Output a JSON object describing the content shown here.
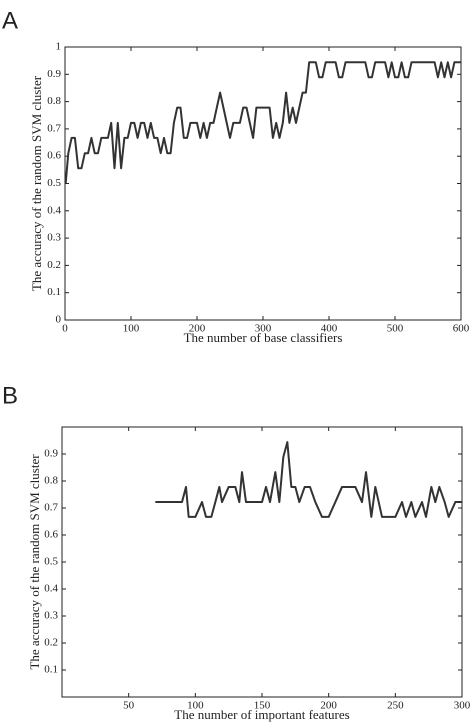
{
  "chart_data": [
    {
      "type": "line",
      "label": "A",
      "xlabel": "The number of base classifiers",
      "ylabel": "The accuracy of the random SVM cluster",
      "x": [
        1,
        5,
        10,
        15,
        20,
        25,
        30,
        35,
        40,
        45,
        50,
        55,
        60,
        65,
        70,
        75,
        80,
        85,
        90,
        95,
        100,
        105,
        110,
        115,
        120,
        125,
        130,
        135,
        140,
        145,
        150,
        155,
        160,
        165,
        170,
        175,
        180,
        185,
        190,
        195,
        200,
        205,
        210,
        215,
        220,
        225,
        230,
        235,
        240,
        245,
        250,
        255,
        260,
        265,
        270,
        275,
        280,
        285,
        290,
        295,
        300,
        305,
        310,
        315,
        320,
        325,
        330,
        335,
        340,
        345,
        350,
        355,
        360,
        365,
        370,
        375,
        380,
        385,
        390,
        395,
        400,
        405,
        410,
        415,
        420,
        425,
        430,
        435,
        440,
        445,
        450,
        455,
        460,
        465,
        470,
        475,
        480,
        485,
        490,
        495,
        500,
        505,
        510,
        515,
        520,
        525,
        530,
        535,
        540,
        545,
        550,
        555,
        560,
        565,
        570,
        575,
        580,
        585,
        590,
        595,
        600
      ],
      "series": [
        {
          "name": "accuracy",
          "color": "#333333",
          "values": [
            0.5,
            0.611,
            0.667,
            0.667,
            0.556,
            0.556,
            0.611,
            0.611,
            0.667,
            0.611,
            0.611,
            0.667,
            0.667,
            0.667,
            0.722,
            0.556,
            0.722,
            0.556,
            0.667,
            0.667,
            0.722,
            0.722,
            0.667,
            0.722,
            0.722,
            0.667,
            0.722,
            0.667,
            0.667,
            0.611,
            0.667,
            0.611,
            0.611,
            0.722,
            0.778,
            0.778,
            0.667,
            0.667,
            0.722,
            0.722,
            0.722,
            0.667,
            0.722,
            0.667,
            0.722,
            0.722,
            0.778,
            0.833,
            0.778,
            0.722,
            0.667,
            0.722,
            0.722,
            0.722,
            0.778,
            0.778,
            0.722,
            0.667,
            0.778,
            0.778,
            0.778,
            0.778,
            0.778,
            0.667,
            0.722,
            0.667,
            0.722,
            0.833,
            0.722,
            0.778,
            0.722,
            0.778,
            0.833,
            0.833,
            0.944,
            0.944,
            0.944,
            0.889,
            0.889,
            0.944,
            0.944,
            0.944,
            0.944,
            0.889,
            0.889,
            0.944,
            0.944,
            0.944,
            0.944,
            0.944,
            0.944,
            0.944,
            0.889,
            0.889,
            0.944,
            0.944,
            0.944,
            0.944,
            0.889,
            0.944,
            0.889,
            0.889,
            0.944,
            0.889,
            0.889,
            0.944,
            0.944,
            0.944,
            0.944,
            0.944,
            0.944,
            0.944,
            0.944,
            0.889,
            0.944,
            0.889,
            0.944,
            0.889,
            0.944,
            0.944,
            0.944
          ]
        }
      ],
      "xlim": [
        0,
        600
      ],
      "xticks": [
        0,
        100,
        200,
        300,
        400,
        500,
        600
      ],
      "ylim": [
        0,
        1
      ],
      "yticks": [
        0,
        0.1,
        0.2,
        0.3,
        0.4,
        0.5,
        0.6,
        0.7,
        0.8,
        0.9,
        1
      ]
    },
    {
      "type": "line",
      "label": "B",
      "xlabel": "The number of important features",
      "ylabel": "The accuracy of the random SVM cluster",
      "x": [
        70,
        75,
        80,
        85,
        90,
        93,
        95,
        100,
        105,
        108,
        112,
        115,
        118,
        120,
        125,
        130,
        133,
        135,
        138,
        145,
        150,
        153,
        156,
        160,
        163,
        166,
        169,
        172,
        175,
        178,
        182,
        186,
        190,
        195,
        200,
        205,
        210,
        215,
        220,
        225,
        228,
        232,
        235,
        240,
        245,
        250,
        255,
        258,
        262,
        265,
        270,
        273,
        277,
        280,
        283,
        287,
        290,
        295,
        300
      ],
      "series": [
        {
          "name": "accuracy",
          "color": "#333333",
          "values": [
            0.722,
            0.722,
            0.722,
            0.722,
            0.722,
            0.778,
            0.667,
            0.667,
            0.722,
            0.667,
            0.667,
            0.722,
            0.778,
            0.722,
            0.778,
            0.778,
            0.722,
            0.833,
            0.722,
            0.722,
            0.722,
            0.778,
            0.722,
            0.833,
            0.722,
            0.889,
            0.944,
            0.778,
            0.778,
            0.722,
            0.778,
            0.778,
            0.722,
            0.667,
            0.667,
            0.722,
            0.778,
            0.778,
            0.778,
            0.722,
            0.833,
            0.667,
            0.778,
            0.667,
            0.667,
            0.667,
            0.722,
            0.667,
            0.722,
            0.667,
            0.722,
            0.667,
            0.778,
            0.722,
            0.778,
            0.722,
            0.667,
            0.722,
            0.722
          ]
        }
      ],
      "xlim": [
        0,
        300
      ],
      "xticks": [
        50,
        100,
        150,
        200,
        250,
        300
      ],
      "ylim": [
        0,
        1
      ],
      "yticks": [
        0.1,
        0.2,
        0.3,
        0.4,
        0.5,
        0.6,
        0.7,
        0.8,
        0.9
      ]
    }
  ]
}
